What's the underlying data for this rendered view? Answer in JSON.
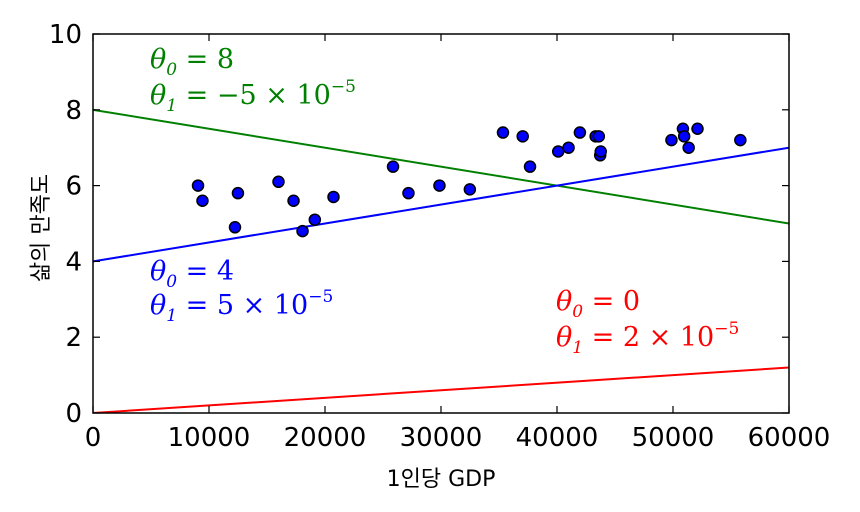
{
  "chart_data": {
    "type": "scatter",
    "xlabel": "1인당 GDP",
    "ylabel": "삶의 만족도",
    "xlim": [
      0,
      60000
    ],
    "ylim": [
      0,
      10
    ],
    "xticks": [
      0,
      10000,
      20000,
      30000,
      40000,
      50000,
      60000
    ],
    "yticks": [
      0,
      2,
      4,
      6,
      8,
      10
    ],
    "grid": false,
    "points": {
      "color": "#0000ff",
      "x": [
        9054,
        9437,
        12240,
        12495,
        15991,
        17288,
        18064,
        19121,
        20732,
        25864,
        27195,
        29866,
        32486,
        35343,
        37044,
        37675,
        40106,
        40996,
        41973,
        43331,
        43603,
        43724,
        43770,
        49866,
        50855,
        50962,
        51350,
        52114,
        55805
      ],
      "y": [
        6.0,
        5.6,
        4.9,
        5.8,
        6.1,
        5.6,
        4.8,
        5.1,
        5.7,
        6.5,
        5.8,
        6.0,
        5.9,
        7.4,
        7.3,
        6.5,
        6.9,
        7.0,
        7.4,
        7.3,
        7.3,
        6.8,
        6.9,
        7.2,
        7.5,
        7.3,
        7.0,
        7.5,
        7.2
      ]
    },
    "lines": [
      {
        "theta0": 8,
        "theta1": -5e-05,
        "color": "#008000",
        "label": [
          "θ0 = 8",
          "θ1 = −5 × 10−5"
        ]
      },
      {
        "theta0": 4,
        "theta1": 5e-05,
        "color": "#0000ff",
        "label": [
          "θ0 = 4",
          "θ1 = 5 × 10−5"
        ]
      },
      {
        "theta0": 0,
        "theta1": 2e-05,
        "color": "#ff0000",
        "label": [
          "θ0 = 0",
          "θ1 = 2 × 10−5"
        ]
      }
    ]
  },
  "annotations": [
    {
      "theta0_value": "8",
      "theta1_value": "−5",
      "exp": "−5"
    },
    {
      "theta0_value": "4",
      "theta1_value": "5",
      "exp": "−5"
    },
    {
      "theta0_value": "0",
      "theta1_value": "2",
      "exp": "−5"
    }
  ]
}
